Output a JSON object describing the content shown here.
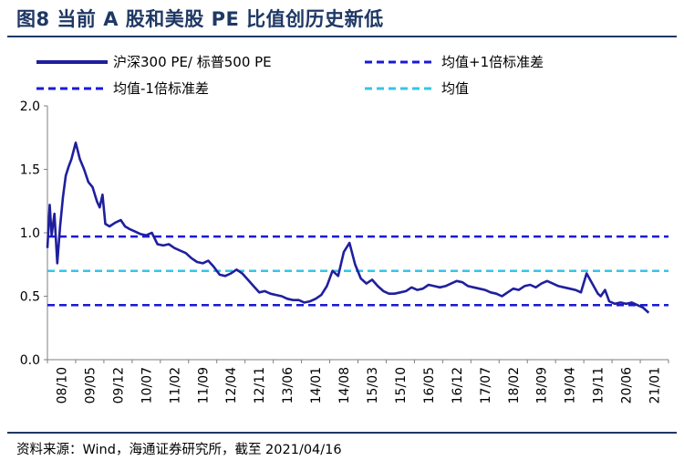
{
  "header": {
    "title": "图8  当前 A 股和美股 PE 比值创历史新低"
  },
  "source": "资料来源：Wind，海通证券研究所，截至 2021/04/16",
  "colors": {
    "title": "#1f3864",
    "series": "#1f1f9e",
    "band": "#1a1ad6",
    "mean": "#33c6e8"
  },
  "chart_data": {
    "type": "line",
    "title": "当前 A 股和美股 PE 比值创历史新低",
    "ylim": [
      0.0,
      2.0
    ],
    "yticks": [
      0.0,
      0.5,
      1.0,
      1.5,
      2.0
    ],
    "ytick_labels": [
      "0.0",
      "0.5",
      "1.0",
      "1.5",
      "2.0"
    ],
    "xtick_labels": [
      "08/10",
      "09/05",
      "09/12",
      "10/07",
      "11/02",
      "11/09",
      "12/04",
      "12/11",
      "13/06",
      "14/01",
      "14/08",
      "15/03",
      "15/10",
      "16/05",
      "16/12",
      "17/07",
      "18/02",
      "18/09",
      "19/04",
      "19/11",
      "20/06",
      "21/01"
    ],
    "legend": [
      "沪深300 PE/ 标普500 PE",
      "均值+1倍标准差",
      "均值-1倍标准差",
      "均值"
    ],
    "reference_lines": {
      "mean_plus_1sd": 0.97,
      "mean": 0.7,
      "mean_minus_1sd": 0.43
    },
    "series": [
      {
        "name": "沪深300 PE/ 标普500 PE",
        "x": [
          0,
          0.08,
          0.15,
          0.25,
          0.35,
          0.45,
          0.55,
          0.65,
          0.75,
          0.85,
          1.0,
          1.15,
          1.3,
          1.45,
          1.6,
          1.75,
          1.85,
          1.95,
          2.05,
          2.2,
          2.4,
          2.6,
          2.75,
          2.9,
          3.1,
          3.3,
          3.5,
          3.7,
          3.9,
          4.1,
          4.3,
          4.5,
          4.7,
          4.9,
          5.1,
          5.3,
          5.5,
          5.7,
          5.9,
          6.1,
          6.3,
          6.5,
          6.7,
          6.9,
          7.1,
          7.3,
          7.5,
          7.7,
          7.9,
          8.1,
          8.3,
          8.5,
          8.7,
          8.9,
          9.1,
          9.3,
          9.5,
          9.7,
          9.9,
          10.1,
          10.3,
          10.5,
          10.7,
          10.9,
          11.1,
          11.3,
          11.5,
          11.7,
          11.9,
          12.1,
          12.3,
          12.5,
          12.7,
          12.9,
          13.1,
          13.3,
          13.5,
          13.7,
          13.9,
          14.1,
          14.3,
          14.5,
          14.7,
          14.9,
          15.1,
          15.3,
          15.5,
          15.7,
          15.9,
          16.1,
          16.3,
          16.5,
          16.7,
          16.9,
          17.1,
          17.3,
          17.5,
          17.7,
          17.9,
          18.1,
          18.3,
          18.5,
          18.7,
          18.9,
          19.1,
          19.3,
          19.5,
          19.6,
          19.75,
          19.9,
          20.1,
          20.3,
          20.5,
          20.7,
          20.9,
          21.1,
          21.3
        ],
        "y": [
          0.88,
          1.22,
          0.98,
          1.15,
          0.76,
          1.05,
          1.28,
          1.45,
          1.52,
          1.58,
          1.71,
          1.58,
          1.5,
          1.4,
          1.36,
          1.25,
          1.2,
          1.3,
          1.07,
          1.05,
          1.08,
          1.1,
          1.05,
          1.03,
          1.01,
          0.99,
          0.98,
          1.0,
          0.91,
          0.9,
          0.91,
          0.88,
          0.86,
          0.84,
          0.8,
          0.77,
          0.76,
          0.78,
          0.73,
          0.67,
          0.66,
          0.68,
          0.71,
          0.68,
          0.63,
          0.58,
          0.53,
          0.54,
          0.52,
          0.51,
          0.5,
          0.48,
          0.47,
          0.47,
          0.45,
          0.46,
          0.48,
          0.51,
          0.58,
          0.7,
          0.66,
          0.85,
          0.92,
          0.75,
          0.64,
          0.6,
          0.63,
          0.58,
          0.54,
          0.52,
          0.52,
          0.53,
          0.54,
          0.57,
          0.55,
          0.56,
          0.59,
          0.58,
          0.57,
          0.58,
          0.6,
          0.62,
          0.61,
          0.58,
          0.57,
          0.56,
          0.55,
          0.53,
          0.52,
          0.5,
          0.53,
          0.56,
          0.55,
          0.58,
          0.59,
          0.57,
          0.6,
          0.62,
          0.6,
          0.58,
          0.57,
          0.56,
          0.55,
          0.53,
          0.68,
          0.6,
          0.52,
          0.5,
          0.55,
          0.46,
          0.44,
          0.45,
          0.44,
          0.45,
          0.43,
          0.41,
          0.37
        ]
      }
    ]
  }
}
